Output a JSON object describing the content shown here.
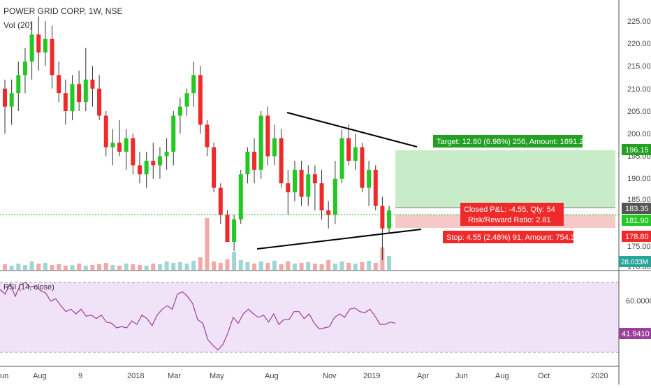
{
  "header": {
    "title": "POWER GRID CORP, 1W, NSE",
    "volume_label": "Vol (20)",
    "rsi_label": "RSI (14, close)"
  },
  "colors": {
    "up": "#26a69a",
    "up_body": "#22c922",
    "down": "#ef2a2a",
    "target_fill": "#c8ecc8",
    "stop_fill": "#f7c8c8",
    "rsi_line": "#9c3f9c",
    "rsi_band": "#f1e3f7",
    "last_price_line": "#22c922",
    "vol_up": "#9fd6d1",
    "vol_down": "#f4a7a7"
  },
  "price_axis": {
    "ticks": [
      "225.00",
      "220.00",
      "215.00",
      "210.00",
      "205.00",
      "200.00",
      "195.00",
      "190.00",
      "185.00",
      "175.00",
      "170.00"
    ],
    "labels": {
      "target": "196.15",
      "current": "183.35",
      "entry": "181.90",
      "stop": "178.80",
      "volume": "28.033M"
    }
  },
  "rsi_axis": {
    "ticks": [
      "60.0000"
    ],
    "current": "41.9410"
  },
  "time_axis": {
    "labels": [
      "un",
      "Aug",
      "9",
      "2018",
      "Mar",
      "May",
      "Aug",
      "Nov",
      "2019",
      "Apr",
      "Jun",
      "Aug",
      "Oct",
      "2020"
    ]
  },
  "position": {
    "target_text": "Target: 12.80 (6.98%) 256, Amount: 1691.2",
    "pl_text": "Closed P&L: -4.55, Qty: 54",
    "rr_text": "Risk/Reward Ratio: 2.81",
    "stop_text": "Stop: 4.55 (2.48%) 91, Amount: 754.3"
  },
  "chart_data": {
    "type": "candlestick",
    "title": "POWER GRID CORP, 1W, NSE",
    "ylim": [
      170,
      226
    ],
    "candles": [
      [
        210,
        212,
        200,
        206
      ],
      [
        206,
        212,
        202,
        209
      ],
      [
        209,
        216,
        205,
        213
      ],
      [
        213,
        219,
        209,
        216
      ],
      [
        216,
        225,
        212,
        222
      ],
      [
        222,
        226,
        214,
        218
      ],
      [
        218,
        225,
        215,
        221
      ],
      [
        221,
        224,
        210,
        213
      ],
      [
        213,
        216,
        207,
        209
      ],
      [
        209,
        212,
        202,
        205
      ],
      [
        205,
        213,
        203,
        211
      ],
      [
        211,
        214,
        205,
        207
      ],
      [
        207,
        219,
        205,
        212
      ],
      [
        212,
        215,
        206,
        210
      ],
      [
        210,
        213,
        203,
        204
      ],
      [
        204,
        205,
        195,
        197
      ],
      [
        197,
        201,
        193,
        198
      ],
      [
        198,
        203,
        195,
        196
      ],
      [
        196,
        201,
        192,
        199
      ],
      [
        199,
        200,
        191,
        193
      ],
      [
        193,
        196,
        189,
        191
      ],
      [
        191,
        196,
        188,
        194
      ],
      [
        194,
        198,
        190,
        193
      ],
      [
        193,
        197,
        190,
        195
      ],
      [
        195,
        199,
        192,
        196
      ],
      [
        196,
        205,
        193,
        204
      ],
      [
        204,
        208,
        200,
        206
      ],
      [
        206,
        210,
        204,
        209
      ],
      [
        209,
        216,
        206,
        213
      ],
      [
        213,
        215,
        200,
        202
      ],
      [
        202,
        203,
        195,
        197
      ],
      [
        197,
        198,
        187,
        188
      ],
      [
        188,
        189,
        180,
        182
      ],
      [
        182,
        183,
        176,
        176
      ],
      [
        176,
        182,
        174,
        181
      ],
      [
        181,
        192,
        180,
        191
      ],
      [
        191,
        197,
        189,
        196
      ],
      [
        196,
        199,
        189,
        192
      ],
      [
        192,
        205,
        190,
        204
      ],
      [
        204,
        206,
        193,
        195
      ],
      [
        195,
        202,
        193,
        199
      ],
      [
        199,
        201,
        188,
        189
      ],
      [
        189,
        192,
        182,
        187
      ],
      [
        187,
        194,
        185,
        192
      ],
      [
        192,
        194,
        184,
        186
      ],
      [
        186,
        193,
        184,
        191
      ],
      [
        191,
        193,
        183,
        189
      ],
      [
        189,
        192,
        181,
        183
      ],
      [
        183,
        185,
        179,
        182
      ],
      [
        182,
        194,
        180,
        190
      ],
      [
        190,
        201,
        189,
        199
      ],
      [
        199,
        202,
        193,
        194
      ],
      [
        194,
        200,
        192,
        197
      ],
      [
        197,
        198,
        187,
        188
      ],
      [
        188,
        194,
        184,
        192
      ],
      [
        192,
        193,
        183,
        184
      ],
      [
        184,
        186,
        172,
        179
      ],
      [
        179,
        184,
        178,
        183
      ]
    ],
    "trendlines": [
      {
        "from": [
          "2018-Aug",
          204.8
        ],
        "to": [
          "2019-Mar",
          197.5
        ]
      },
      {
        "from": [
          "2018-Jul",
          173.5
        ],
        "to": [
          "2019-Mar",
          180.5
        ]
      }
    ],
    "position": {
      "entry": 181.9,
      "target": 196.15,
      "stop": 178.8,
      "current": 183.35
    },
    "rsi": [
      74,
      70,
      79,
      68,
      78,
      80,
      76,
      77,
      73,
      71,
      64,
      66,
      60,
      55,
      57,
      53,
      57,
      51,
      52,
      49,
      52,
      46,
      45,
      41,
      42,
      41,
      47,
      44,
      52,
      49,
      43,
      52,
      57,
      60,
      57,
      70,
      72,
      68,
      62,
      48,
      45,
      31,
      26,
      22,
      27,
      37,
      50,
      45,
      53,
      57,
      53,
      50,
      52,
      46,
      53,
      44,
      48,
      48,
      55,
      55,
      49,
      53,
      45,
      40,
      41,
      42,
      50,
      53,
      50,
      57,
      58,
      55,
      54,
      57,
      51,
      44,
      44,
      46,
      45
    ]
  }
}
